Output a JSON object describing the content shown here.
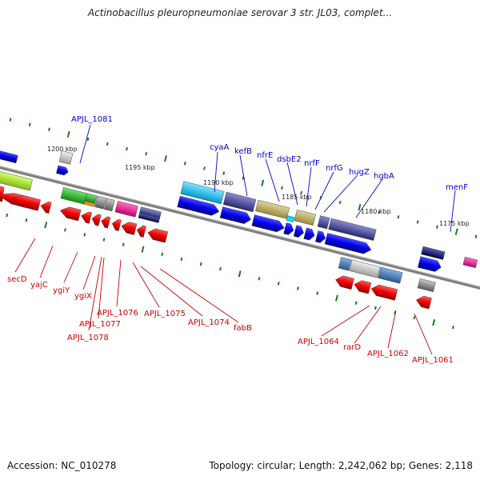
{
  "title": "Actinobacillus pleuropneumoniae serovar 3 str. JL03, complet...",
  "footer": {
    "accession": "Accession: NC_010278",
    "summary": "Topology: circular; Length: 2,242,062 bp; Genes: 2,118"
  },
  "ruler_labels": [
    "1200 kbp",
    "1195 kbp",
    "1190 kbp",
    "1185 kbp",
    "1180 kbp",
    "1175 kbp"
  ],
  "top_gene_labels": [
    "APJL_1081",
    "cyaA",
    "kefB",
    "nfrE",
    "dsbE2",
    "nrfF",
    "nrfG",
    "hugZ",
    "hgbA",
    "menF"
  ],
  "bottom_gene_labels": [
    "secD",
    "yajC",
    "ygiY",
    "ygiX",
    "APJL_1076",
    "APJL_1077",
    "APJL_1078",
    "APJL_1075",
    "APJL_1074",
    "fabB",
    "APJL_1064",
    "rarD",
    "APJL_1062",
    "APJL_1061"
  ],
  "colors": {
    "plus_label": "#0000cc",
    "minus_label": "#cc0000",
    "backbone": "#808080",
    "tick": "#1a7a1a"
  }
}
